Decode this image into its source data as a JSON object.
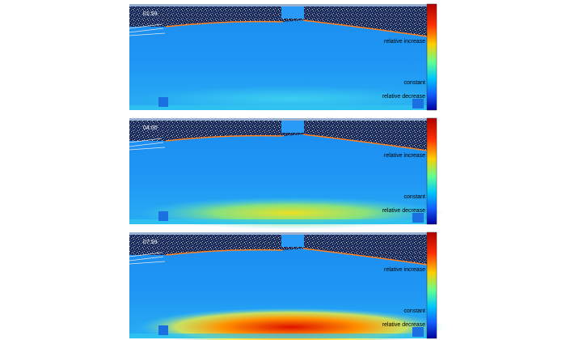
{
  "panels": [
    {
      "time": "01:59",
      "colorbar": {
        "top": "relative increase",
        "middle": "constant",
        "bottom": "relative decrease"
      }
    },
    {
      "time": "04:00",
      "colorbar": {
        "top": "relative increase",
        "middle": "constant",
        "bottom": "relative decrease"
      }
    },
    {
      "time": "07:59",
      "colorbar": {
        "top": "relative increase",
        "middle": "constant",
        "bottom": "relative decrease"
      }
    }
  ]
}
